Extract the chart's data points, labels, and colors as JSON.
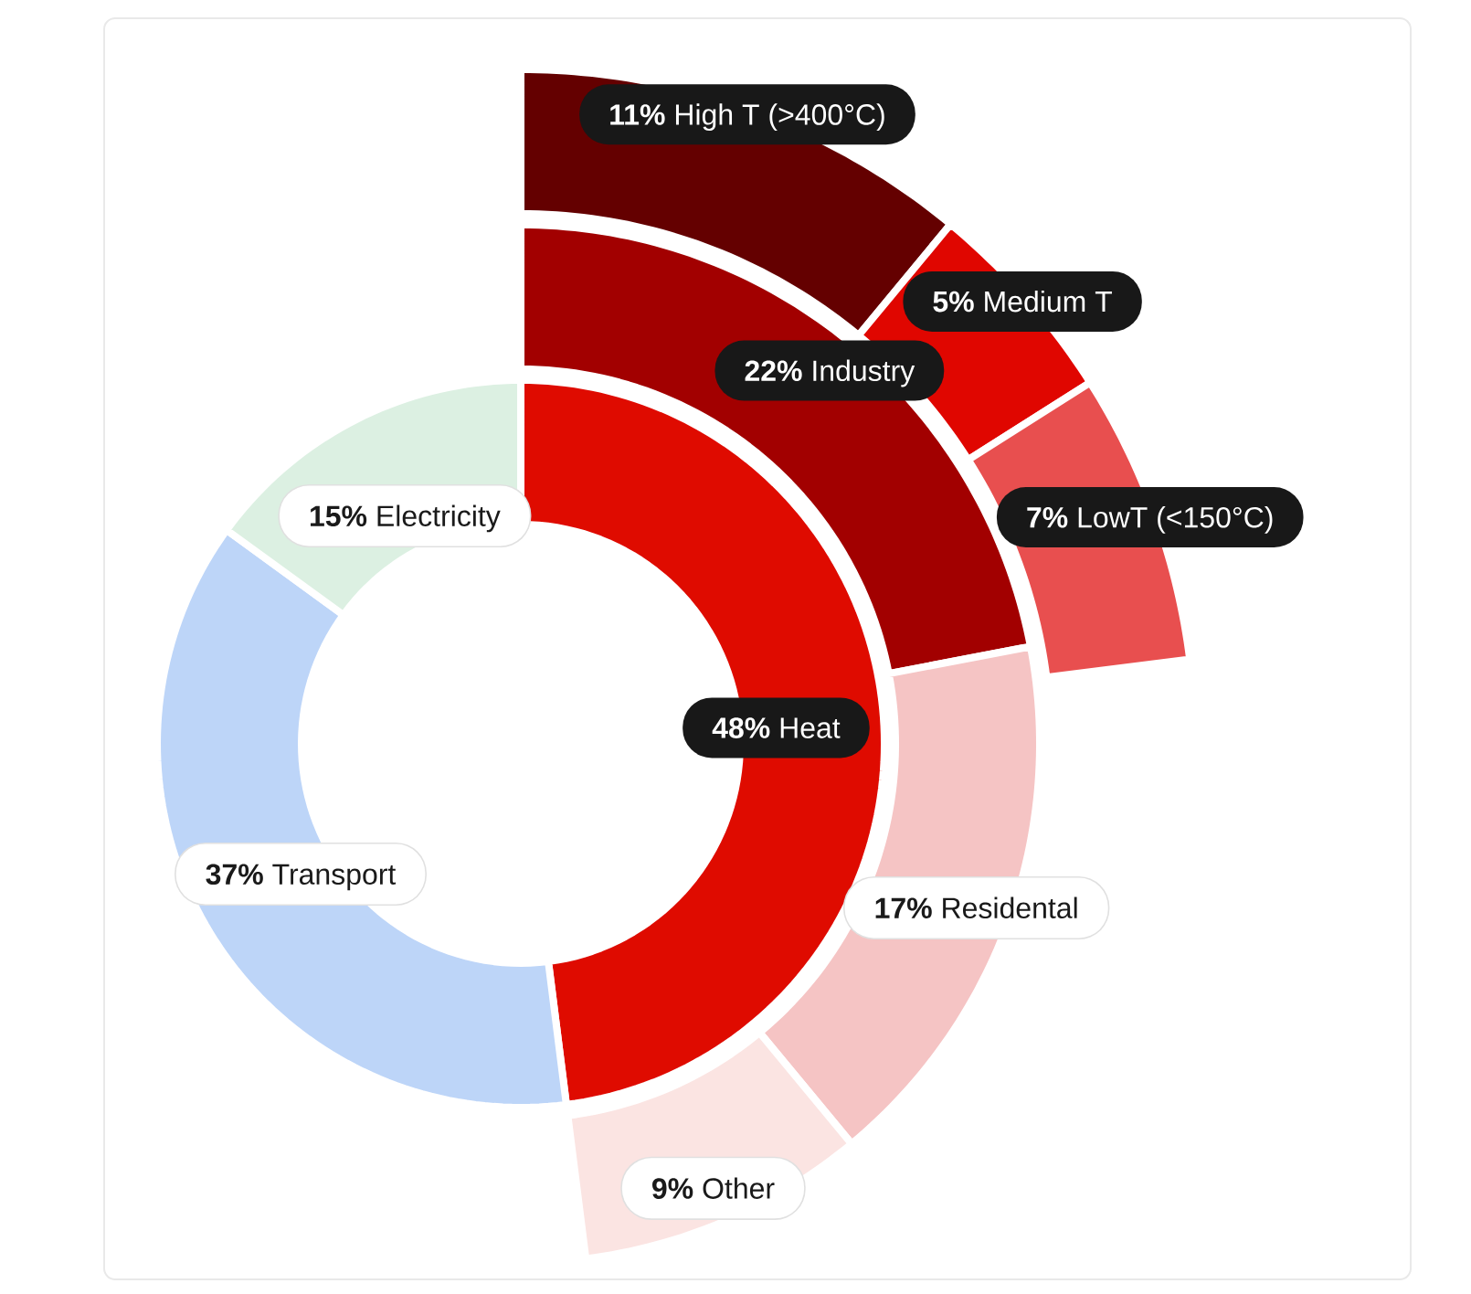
{
  "chart_data": [
    {
      "type": "donut",
      "categories": [
        "Heat",
        "Transport",
        "Electricity"
      ],
      "values": [
        48,
        37,
        15
      ],
      "value_labels": [
        "48%",
        "37%",
        "15%"
      ],
      "colors": [
        "#df0b00",
        "#bdd5f8",
        "#dcf0e2"
      ]
    },
    {
      "type": "donut",
      "categories": [
        "Industry",
        "Residental",
        "Other"
      ],
      "values": [
        22,
        17,
        9
      ],
      "value_labels": [
        "22%",
        "17%",
        "9%"
      ],
      "colors": [
        "#a20000",
        "#f5c4c4",
        "#fbe4e2"
      ]
    },
    {
      "type": "donut",
      "categories": [
        "High T (>400°C)",
        "Medium T",
        "LowT (<150°C)"
      ],
      "values": [
        11,
        5,
        7
      ],
      "value_labels": [
        "11%",
        "5%",
        "7%"
      ],
      "colors": [
        "#640000",
        "#e00600",
        "#e84f4f"
      ]
    }
  ]
}
